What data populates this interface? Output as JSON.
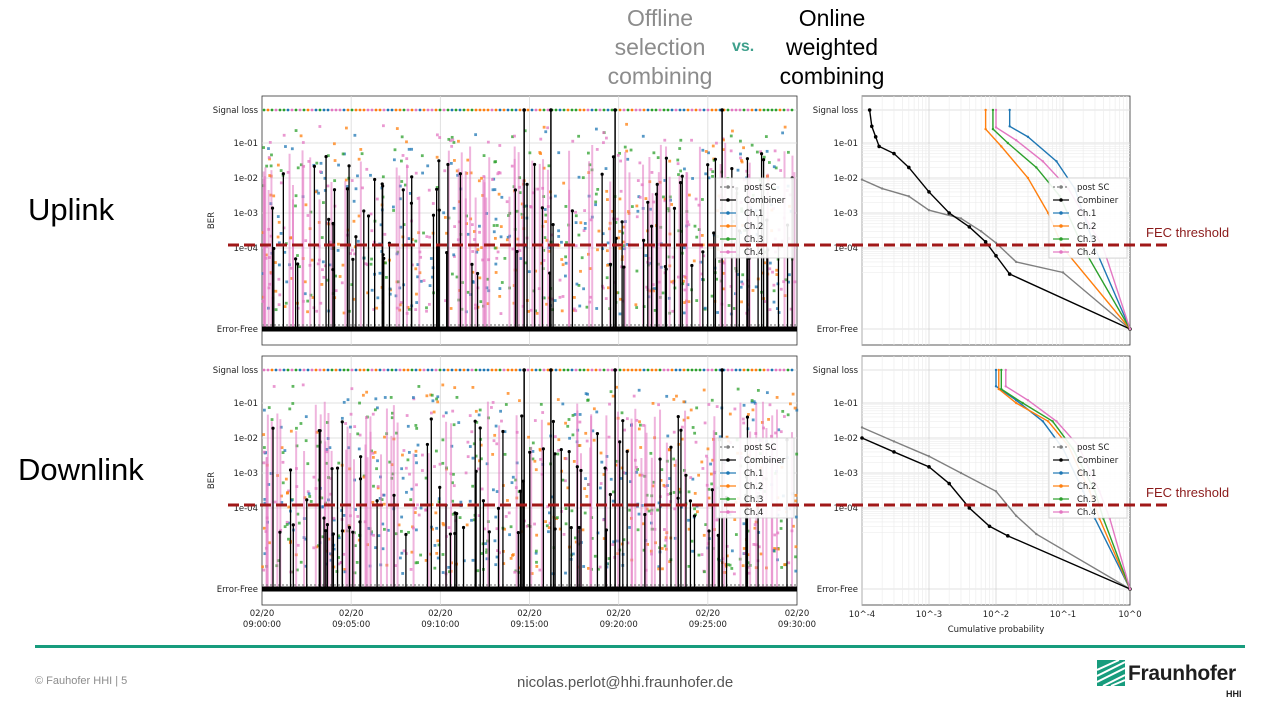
{
  "header": {
    "offline": [
      "Offline",
      "selection",
      "combining"
    ],
    "vs": "vs.",
    "online": [
      "Online",
      "weighted",
      "combining"
    ]
  },
  "rows": [
    "Uplink",
    "Downlink"
  ],
  "fec_label": "FEC threshold",
  "footer": {
    "copyright": "© Fauhofer HHI | 5",
    "email": "nicolas.perlot@hhi.fraunhofer.de",
    "brand": "Fraunhofer",
    "brand_sub": "HHI"
  },
  "colors": {
    "post_sc": "#7f7f7f",
    "combiner": "#000000",
    "ch1": "#1f77b4",
    "ch2": "#ff7f0e",
    "ch3": "#2ca02c",
    "ch4": "#e377c2",
    "fec": "#a01818",
    "accent": "#179c7d"
  },
  "chart_data": [
    {
      "type": "scatter",
      "panel": "uplink-time",
      "ylabel": "BER",
      "y_ticks": [
        "Signal loss",
        "1e-01",
        "1e-02",
        "1e-03",
        "1e-04",
        "Error-Free"
      ],
      "x_ticks": [],
      "legend": [
        "post SC",
        "Combiner",
        "Ch.1",
        "Ch.2",
        "Ch.3",
        "Ch.4"
      ],
      "legend_position": "right",
      "grid": true
    },
    {
      "type": "line",
      "panel": "uplink-cdf",
      "y_ticks": [
        "Signal loss",
        "1e-01",
        "1e-02",
        "1e-03",
        "1e-04",
        "Error-Free"
      ],
      "x_scale": "log",
      "xlim": [
        0.0001,
        1
      ],
      "legend": [
        "post SC",
        "Combiner",
        "Ch.1",
        "Ch.2",
        "Ch.3",
        "Ch.4"
      ],
      "legend_position": "center-right",
      "grid": true,
      "series": [
        {
          "name": "post SC",
          "points": [
            [
              0.0001,
              0.009
            ],
            [
              0.0002,
              0.005
            ],
            [
              0.0005,
              0.003
            ],
            [
              0.001,
              0.0012
            ],
            [
              0.003,
              0.0007
            ],
            [
              0.006,
              0.0003
            ],
            [
              0.01,
              0.00014
            ],
            [
              0.02,
              4e-05
            ],
            [
              0.1,
              2e-05
            ],
            [
              1,
              1e-05
            ]
          ]
        },
        {
          "name": "Combiner",
          "points": [
            [
              0.00013,
              "loss"
            ],
            [
              0.00014,
              0.3
            ],
            [
              0.00016,
              0.15
            ],
            [
              0.00018,
              0.08
            ],
            [
              0.0003,
              0.05
            ],
            [
              0.0005,
              0.02
            ],
            [
              0.001,
              0.004
            ],
            [
              0.002,
              0.001
            ],
            [
              0.004,
              0.0004
            ],
            [
              0.007,
              0.00015
            ],
            [
              0.01,
              6e-05
            ],
            [
              0.016,
              1.8e-05
            ],
            [
              1,
              1e-05
            ]
          ]
        },
        {
          "name": "Ch.1",
          "points": [
            [
              0.016,
              "loss"
            ],
            [
              0.016,
              0.3
            ],
            [
              0.03,
              0.15
            ],
            [
              0.08,
              0.03
            ],
            [
              0.15,
              0.005
            ],
            [
              0.3,
              0.0001
            ],
            [
              1,
              1e-05
            ]
          ]
        },
        {
          "name": "Ch.2",
          "points": [
            [
              0.007,
              "loss"
            ],
            [
              0.007,
              0.25
            ],
            [
              0.012,
              0.08
            ],
            [
              0.03,
              0.01
            ],
            [
              0.06,
              0.001
            ],
            [
              0.1,
              0.0001
            ],
            [
              1,
              1e-05
            ]
          ]
        },
        {
          "name": "Ch.3",
          "points": [
            [
              0.009,
              "loss"
            ],
            [
              0.009,
              0.25
            ],
            [
              0.015,
              0.1
            ],
            [
              0.04,
              0.02
            ],
            [
              0.09,
              0.003
            ],
            [
              0.2,
              0.0001
            ],
            [
              1,
              1e-05
            ]
          ]
        },
        {
          "name": "Ch.4",
          "points": [
            [
              0.01,
              "loss"
            ],
            [
              0.01,
              0.28
            ],
            [
              0.02,
              0.12
            ],
            [
              0.05,
              0.03
            ],
            [
              0.12,
              0.005
            ],
            [
              0.4,
              0.0001
            ],
            [
              1,
              1e-05
            ]
          ]
        }
      ]
    },
    {
      "type": "scatter",
      "panel": "downlink-time",
      "ylabel": "BER",
      "y_ticks": [
        "Signal loss",
        "1e-01",
        "1e-02",
        "1e-03",
        "1e-04",
        "Error-Free"
      ],
      "x_ticks": [
        "02/20 09:00:00",
        "02/20 09:05:00",
        "02/20 09:10:00",
        "02/20 09:15:00",
        "02/20 09:20:00",
        "02/20 09:25:00",
        "02/20 09:30:00"
      ],
      "legend": [
        "post SC",
        "Combiner",
        "Ch.1",
        "Ch.2",
        "Ch.3",
        "Ch.4"
      ],
      "legend_position": "right",
      "grid": true
    },
    {
      "type": "line",
      "panel": "downlink-cdf",
      "xlabel": "Cumulative probability",
      "y_ticks": [
        "Signal loss",
        "1e-01",
        "1e-02",
        "1e-03",
        "1e-04",
        "Error-Free"
      ],
      "x_ticks": [
        "10^-4",
        "10^-3",
        "10^-2",
        "10^-1",
        "10^0"
      ],
      "x_scale": "log",
      "xlim": [
        0.0001,
        1
      ],
      "legend": [
        "post SC",
        "Combiner",
        "Ch.1",
        "Ch.2",
        "Ch.3",
        "Ch.4"
      ],
      "legend_position": "center-right",
      "grid": true,
      "series": [
        {
          "name": "post SC",
          "points": [
            [
              0.0001,
              0.02
            ],
            [
              0.0003,
              0.008
            ],
            [
              0.001,
              0.003
            ],
            [
              0.003,
              0.001
            ],
            [
              0.01,
              0.0003
            ],
            [
              0.02,
              6e-05
            ],
            [
              0.04,
              1.8e-05
            ],
            [
              1,
              1e-05
            ]
          ]
        },
        {
          "name": "Combiner",
          "points": [
            [
              0.0001,
              0.01
            ],
            [
              0.0003,
              0.004
            ],
            [
              0.001,
              0.0015
            ],
            [
              0.002,
              0.0005
            ],
            [
              0.004,
              0.0001
            ],
            [
              0.008,
              3e-05
            ],
            [
              0.015,
              1.6e-05
            ],
            [
              1,
              1e-05
            ]
          ]
        },
        {
          "name": "Ch.1",
          "points": [
            [
              0.01,
              "loss"
            ],
            [
              0.01,
              0.3
            ],
            [
              0.02,
              0.12
            ],
            [
              0.05,
              0.03
            ],
            [
              0.1,
              0.005
            ],
            [
              0.2,
              0.0003
            ],
            [
              0.3,
              5e-05
            ],
            [
              1,
              1e-05
            ]
          ]
        },
        {
          "name": "Ch.2",
          "points": [
            [
              0.011,
              "loss"
            ],
            [
              0.011,
              0.25
            ],
            [
              0.02,
              0.1
            ],
            [
              0.06,
              0.03
            ],
            [
              0.12,
              0.006
            ],
            [
              0.25,
              0.0003
            ],
            [
              0.35,
              5e-05
            ],
            [
              1,
              1e-05
            ]
          ]
        },
        {
          "name": "Ch.3",
          "points": [
            [
              0.012,
              "loss"
            ],
            [
              0.012,
              0.25
            ],
            [
              0.025,
              0.1
            ],
            [
              0.07,
              0.03
            ],
            [
              0.14,
              0.005
            ],
            [
              0.3,
              0.0003
            ],
            [
              0.4,
              5e-05
            ],
            [
              1,
              1e-05
            ]
          ]
        },
        {
          "name": "Ch.4",
          "points": [
            [
              0.014,
              "loss"
            ],
            [
              0.014,
              0.3
            ],
            [
              0.03,
              0.12
            ],
            [
              0.08,
              0.03
            ],
            [
              0.17,
              0.006
            ],
            [
              0.35,
              0.0003
            ],
            [
              0.5,
              5e-05
            ],
            [
              1,
              1e-05
            ]
          ]
        }
      ]
    }
  ]
}
